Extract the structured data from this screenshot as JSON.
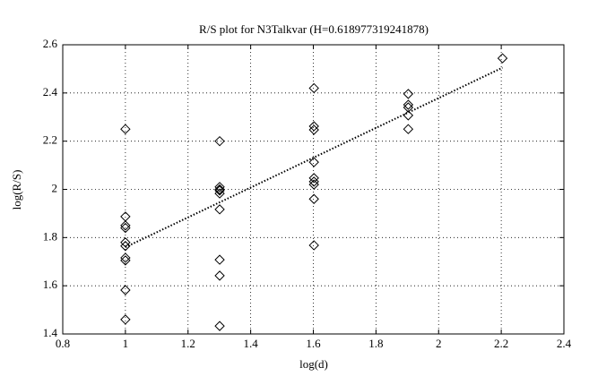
{
  "chart_data": {
    "type": "scatter",
    "title": "R/S plot for N3Talkvar (H=0.618977319241878)",
    "x_label": "log(d)",
    "y_label": "log(R/S)",
    "xlim": [
      0.8,
      2.4
    ],
    "ylim": [
      1.4,
      2.6
    ],
    "xticks": [
      0.8,
      1,
      1.2,
      1.4,
      1.6,
      1.8,
      2,
      2.2,
      2.4
    ],
    "yticks": [
      1.4,
      1.6,
      1.8,
      2,
      2.2,
      2.4,
      2.6
    ],
    "grid": true,
    "series": [
      {
        "marker": "diamond",
        "color": "#000000",
        "x": [
          1,
          1,
          1,
          1,
          1,
          1,
          1,
          1,
          1,
          1,
          1.301,
          1.301,
          1.301,
          1.301,
          1.301,
          1.301,
          1.301,
          1.301,
          1.301,
          1.602,
          1.602,
          1.602,
          1.602,
          1.602,
          1.602,
          1.602,
          1.602,
          1.602,
          1.903,
          1.903,
          1.903,
          1.903,
          1.903,
          2.204
        ],
        "values": [
          2.25,
          1.887,
          1.85,
          1.84,
          1.78,
          1.765,
          1.716,
          1.705,
          1.582,
          1.46,
          2.2,
          2.01,
          2.0,
          1.995,
          1.983,
          1.917,
          1.708,
          1.642,
          1.433,
          2.42,
          2.262,
          2.247,
          2.113,
          2.047,
          2.032,
          2.02,
          1.96,
          1.768,
          2.396,
          2.351,
          2.34,
          2.307,
          2.25,
          2.544
        ]
      },
      {
        "marker": "none",
        "line": "dotted",
        "color": "#000000",
        "x": [
          1,
          2.204
        ],
        "values": [
          1.76,
          2.505
        ]
      }
    ]
  }
}
